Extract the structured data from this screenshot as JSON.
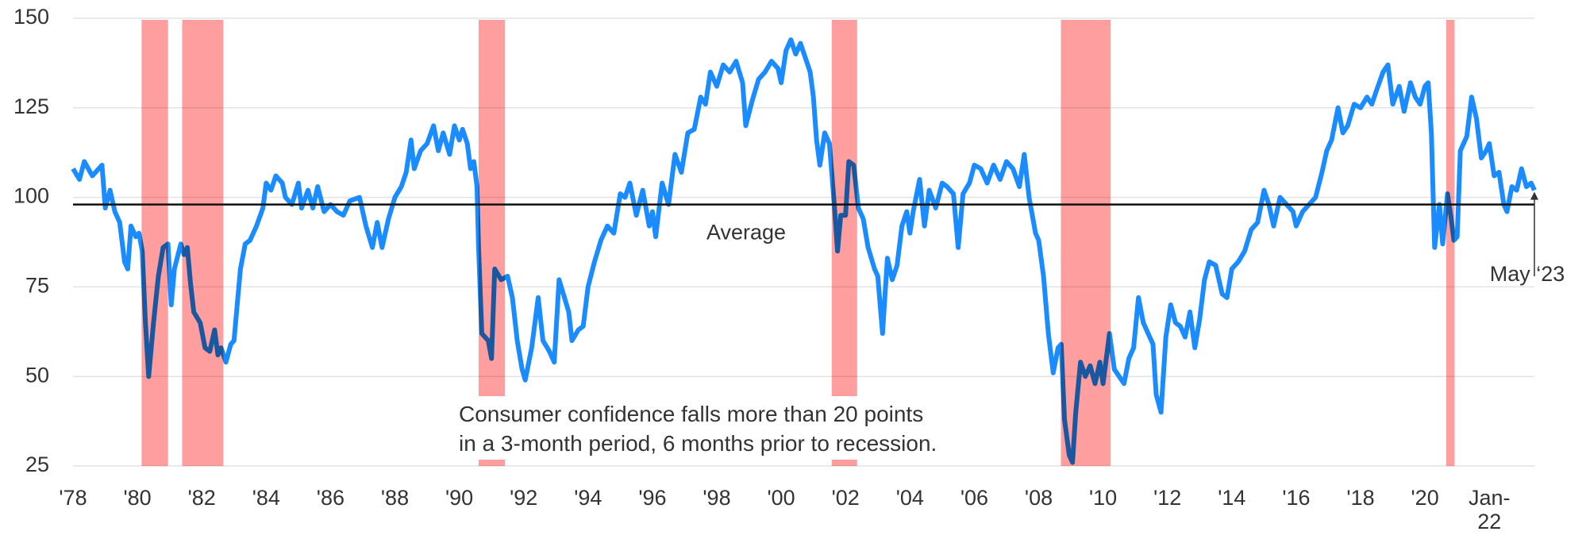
{
  "chart_data": {
    "type": "line",
    "color": "#1a8cff",
    "recession_color": "#ff9e9e",
    "xlim": [
      1978,
      2023.4
    ],
    "ylim": [
      25,
      150
    ],
    "yticks": [
      25,
      50,
      75,
      100,
      125,
      150
    ],
    "xticks": [
      {
        "value": 1978,
        "label": "'78"
      },
      {
        "value": 1980,
        "label": "'80"
      },
      {
        "value": 1982,
        "label": "'82"
      },
      {
        "value": 1984,
        "label": "'84"
      },
      {
        "value": 1986,
        "label": "'86"
      },
      {
        "value": 1988,
        "label": "'88"
      },
      {
        "value": 1990,
        "label": "'90"
      },
      {
        "value": 1992,
        "label": "'92"
      },
      {
        "value": 1994,
        "label": "'94"
      },
      {
        "value": 1996,
        "label": "'96"
      },
      {
        "value": 1998,
        "label": "'98"
      },
      {
        "value": 2000,
        "label": "'00"
      },
      {
        "value": 2002,
        "label": "'02"
      },
      {
        "value": 2004,
        "label": "'04"
      },
      {
        "value": 2006,
        "label": "'06"
      },
      {
        "value": 2008,
        "label": "'08"
      },
      {
        "value": 2010,
        "label": "'10"
      },
      {
        "value": 2012,
        "label": "'12"
      },
      {
        "value": 2014,
        "label": "'14"
      },
      {
        "value": 2016,
        "label": "'16"
      },
      {
        "value": 2018,
        "label": "'18"
      },
      {
        "value": 2020,
        "label": "'20"
      },
      {
        "value": 2022,
        "label": "Jan-\n22"
      }
    ],
    "grid": true,
    "average": 98,
    "average_label": "Average",
    "last_label": "May ‘23",
    "annotation": "Consumer confidence falls more than 20 points\nin a 3-month period, 6 months prior to recession.",
    "recessions": [
      {
        "start": 1980.13,
        "end": 1980.95
      },
      {
        "start": 1981.39,
        "end": 1982.67
      },
      {
        "start": 1990.6,
        "end": 1991.42
      },
      {
        "start": 2001.57,
        "end": 2002.36
      },
      {
        "start": 2008.69,
        "end": 2010.23
      },
      {
        "start": 2020.66,
        "end": 2020.92
      }
    ],
    "x": [
      1978.0,
      1978.2,
      1978.35,
      1978.6,
      1978.9,
      1979.0,
      1979.15,
      1979.3,
      1979.45,
      1979.6,
      1979.7,
      1979.8,
      1979.95,
      1980.05,
      1980.15,
      1980.25,
      1980.35,
      1980.5,
      1980.65,
      1980.8,
      1980.95,
      1981.05,
      1981.15,
      1981.35,
      1981.45,
      1981.55,
      1981.65,
      1981.75,
      1981.95,
      1982.1,
      1982.25,
      1982.4,
      1982.5,
      1982.6,
      1982.75,
      1982.9,
      1983.0,
      1983.1,
      1983.2,
      1983.35,
      1983.5,
      1983.7,
      1983.9,
      1984.0,
      1984.15,
      1984.3,
      1984.5,
      1984.6,
      1984.8,
      1985.0,
      1985.1,
      1985.3,
      1985.45,
      1985.6,
      1985.8,
      1986.0,
      1986.2,
      1986.4,
      1986.6,
      1986.9,
      1987.1,
      1987.3,
      1987.45,
      1987.6,
      1987.8,
      1988.0,
      1988.2,
      1988.35,
      1988.5,
      1988.6,
      1988.8,
      1989.0,
      1989.2,
      1989.35,
      1989.5,
      1989.7,
      1989.85,
      1990.0,
      1990.1,
      1990.25,
      1990.35,
      1990.45,
      1990.55,
      1990.6,
      1990.7,
      1990.9,
      1991.0,
      1991.1,
      1991.3,
      1991.5,
      1991.65,
      1991.8,
      1991.95,
      1992.05,
      1992.25,
      1992.45,
      1992.6,
      1992.8,
      1992.95,
      1993.1,
      1993.4,
      1993.5,
      1993.7,
      1993.85,
      1994.0,
      1994.2,
      1994.4,
      1994.6,
      1994.8,
      1995.0,
      1995.15,
      1995.3,
      1995.5,
      1995.7,
      1995.9,
      1996.0,
      1996.1,
      1996.3,
      1996.5,
      1996.7,
      1996.9,
      1997.1,
      1997.3,
      1997.5,
      1997.65,
      1997.8,
      1998.0,
      1998.2,
      1998.4,
      1998.6,
      1998.8,
      1998.9,
      1999.1,
      1999.3,
      1999.5,
      1999.7,
      1999.9,
      2000.0,
      2000.15,
      2000.3,
      2000.45,
      2000.6,
      2000.75,
      2000.9,
      2001.0,
      2001.1,
      2001.2,
      2001.35,
      2001.5,
      2001.65,
      2001.75,
      2001.85,
      2002.0,
      2002.1,
      2002.25,
      2002.4,
      2002.55,
      2002.7,
      2002.9,
      2003.0,
      2003.15,
      2003.3,
      2003.45,
      2003.6,
      2003.75,
      2003.9,
      2004.0,
      2004.1,
      2004.3,
      2004.45,
      2004.6,
      2004.8,
      2005.0,
      2005.15,
      2005.35,
      2005.5,
      2005.65,
      2005.85,
      2006.0,
      2006.2,
      2006.4,
      2006.6,
      2006.8,
      2007.0,
      2007.2,
      2007.4,
      2007.55,
      2007.7,
      2007.9,
      2008.0,
      2008.15,
      2008.3,
      2008.45,
      2008.6,
      2008.7,
      2008.8,
      2008.95,
      2009.05,
      2009.15,
      2009.3,
      2009.45,
      2009.6,
      2009.75,
      2009.9,
      2010.0,
      2010.2,
      2010.35,
      2010.5,
      2010.65,
      2010.8,
      2010.95,
      2011.1,
      2011.25,
      2011.4,
      2011.55,
      2011.65,
      2011.8,
      2011.95,
      2012.1,
      2012.25,
      2012.4,
      2012.55,
      2012.7,
      2012.85,
      2013.0,
      2013.15,
      2013.3,
      2013.5,
      2013.7,
      2013.85,
      2014.0,
      2014.2,
      2014.4,
      2014.6,
      2014.8,
      2015.0,
      2015.15,
      2015.3,
      2015.5,
      2015.7,
      2015.9,
      2016.0,
      2016.2,
      2016.4,
      2016.6,
      2016.8,
      2016.95,
      2017.1,
      2017.3,
      2017.45,
      2017.6,
      2017.8,
      2018.0,
      2018.2,
      2018.35,
      2018.5,
      2018.7,
      2018.85,
      2019.0,
      2019.2,
      2019.35,
      2019.55,
      2019.7,
      2019.85,
      2020.0,
      2020.1,
      2020.2,
      2020.3,
      2020.45,
      2020.55,
      2020.7,
      2020.8,
      2020.9,
      2021.0,
      2021.1,
      2021.3,
      2021.45,
      2021.6,
      2021.75,
      2021.9,
      2022.0,
      2022.15,
      2022.3,
      2022.45,
      2022.55,
      2022.7,
      2022.85,
      2023.0,
      2023.15,
      2023.3,
      2023.4
    ],
    "values": [
      108,
      105,
      110,
      106,
      109,
      97,
      102,
      96,
      93,
      82,
      80,
      92,
      89,
      90,
      85,
      65,
      50,
      65,
      78,
      86,
      87,
      70,
      80,
      87,
      84,
      86,
      76,
      68,
      65,
      58,
      57,
      63,
      56,
      58,
      54,
      59,
      60,
      70,
      80,
      87,
      88,
      92,
      97,
      104,
      102,
      106,
      104,
      100,
      98,
      104,
      97,
      102,
      97,
      103,
      96,
      98,
      96,
      95,
      99,
      100,
      92,
      86,
      93,
      86,
      94,
      100,
      103,
      107,
      116,
      108,
      113,
      115,
      120,
      113,
      118,
      112,
      120,
      116,
      119,
      115,
      108,
      110,
      103,
      86,
      62,
      60,
      55,
      80,
      77,
      78,
      72,
      60,
      52,
      49,
      58,
      72,
      60,
      57,
      54,
      77,
      68,
      60,
      63,
      64,
      75,
      82,
      88,
      92,
      90,
      101,
      100,
      104,
      95,
      102,
      92,
      96,
      89,
      104,
      98,
      112,
      107,
      118,
      119,
      128,
      126,
      135,
      131,
      137,
      135,
      138,
      132,
      120,
      127,
      133,
      135,
      138,
      136,
      132,
      141,
      144,
      140,
      143,
      139,
      135,
      128,
      116,
      109,
      118,
      115,
      98,
      85,
      95,
      95,
      110,
      109,
      97,
      94,
      86,
      80,
      78,
      62,
      83,
      77,
      81,
      92,
      96,
      90,
      96,
      105,
      92,
      102,
      97,
      104,
      103,
      101,
      86,
      101,
      104,
      109,
      108,
      104,
      109,
      105,
      110,
      108,
      103,
      112,
      100,
      90,
      88,
      78,
      62,
      51,
      58,
      59,
      38,
      28,
      26,
      40,
      54,
      50,
      53,
      48,
      54,
      48,
      62,
      52,
      50,
      48,
      55,
      58,
      72,
      65,
      62,
      59,
      45,
      40,
      61,
      70,
      65,
      64,
      61,
      68,
      58,
      66,
      77,
      82,
      81,
      73,
      72,
      80,
      82,
      85,
      91,
      93,
      102,
      98,
      92,
      100,
      98,
      96,
      92,
      96,
      98,
      100,
      107,
      113,
      116,
      125,
      118,
      120,
      126,
      125,
      128,
      126,
      130,
      135,
      137,
      126,
      131,
      124,
      132,
      128,
      126,
      131,
      132,
      118,
      86,
      98,
      87,
      101,
      95,
      88,
      89,
      113,
      117,
      128,
      122,
      111,
      113,
      115,
      106,
      107,
      98,
      96,
      103,
      102,
      108,
      103,
      104,
      102
    ]
  }
}
